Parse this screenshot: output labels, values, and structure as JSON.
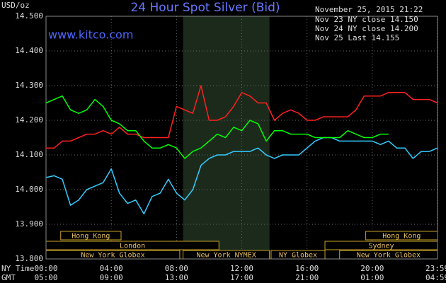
{
  "chart_data": {
    "type": "line",
    "title": "24 Hour Spot Silver (Bid)",
    "website": "www.kitco.com",
    "y_label": "USD/oz",
    "timestamp": "November 25, 2015 21:22",
    "x_row_label": "NY Time",
    "x2_row_label": "GMT",
    "xlim": [
      0,
      24
    ],
    "xticks": [
      {
        "value": 0,
        "label": "00:00"
      },
      {
        "value": 4,
        "label": "04:00"
      },
      {
        "value": 8,
        "label": "08:00"
      },
      {
        "value": 12,
        "label": "12:00"
      },
      {
        "value": 16,
        "label": "16:00"
      },
      {
        "value": 20,
        "label": "20:00"
      },
      {
        "value": 23.98,
        "label": "23:59"
      }
    ],
    "x2tick_labels": [
      "05:00",
      "09:00",
      "13:00",
      "17:00",
      "21:00",
      "01:00",
      "04:59"
    ],
    "ylim": [
      13.8,
      14.5
    ],
    "yticks": [
      {
        "value": 13.8,
        "label": "13.800"
      },
      {
        "value": 13.9,
        "label": "13.900"
      },
      {
        "value": 14.0,
        "label": "14.000"
      },
      {
        "value": 14.1,
        "label": "14.100"
      },
      {
        "value": 14.2,
        "label": "14.200"
      },
      {
        "value": 14.3,
        "label": "14.300"
      },
      {
        "value": 14.4,
        "label": "14.400"
      },
      {
        "value": 14.5,
        "label": "14.500"
      }
    ],
    "grid": true,
    "highlight": [
      8.4,
      13.7
    ],
    "sessions": [
      [
        {
          "label": "Hong Kong",
          "start": 0.9,
          "end": 4.6
        },
        {
          "label": "Hong Kong",
          "start": 19.6,
          "end": 24
        }
      ],
      [
        {
          "label": "London",
          "start": 0,
          "end": 10.6
        },
        {
          "label": "Sydney",
          "start": 17.1,
          "end": 24
        }
      ],
      [
        {
          "label": "New York Globex",
          "start": 0,
          "end": 8.2
        },
        {
          "label": "New York NYMEX",
          "start": 8.4,
          "end": 13.7
        },
        {
          "label": "NY Globex",
          "start": 13.8,
          "end": 17.1
        },
        {
          "label": "New York Globex",
          "start": 18,
          "end": 24
        }
      ]
    ],
    "x": [
      0,
      0.5,
      1,
      1.5,
      2,
      2.5,
      3,
      3.5,
      4,
      4.5,
      5,
      5.5,
      6,
      6.5,
      7,
      7.5,
      8,
      8.5,
      9,
      9.5,
      10,
      10.5,
      11,
      11.5,
      12,
      12.5,
      13,
      13.5,
      14,
      14.5,
      15,
      15.5,
      16,
      16.5,
      17,
      17.5,
      18,
      18.5,
      19,
      19.5,
      20,
      20.5,
      21,
      21.5,
      22,
      22.5,
      23,
      23.5,
      24
    ],
    "series": [
      {
        "name": "Nov 23 NY close 14.150",
        "color": "#33ccff",
        "values": [
          14.035,
          14.04,
          14.03,
          13.955,
          13.97,
          14.0,
          14.01,
          14.02,
          14.06,
          13.99,
          13.96,
          13.97,
          13.93,
          13.98,
          13.99,
          14.03,
          13.99,
          13.97,
          14.0,
          14.07,
          14.09,
          14.1,
          14.1,
          14.11,
          14.11,
          14.11,
          14.12,
          14.1,
          14.09,
          14.1,
          14.1,
          14.1,
          14.12,
          14.14,
          14.15,
          14.15,
          14.14,
          14.14,
          14.14,
          14.14,
          14.14,
          14.13,
          14.14,
          14.12,
          14.12,
          14.09,
          14.11,
          14.11,
          14.12
        ]
      },
      {
        "name": "Nov 24 NY close 14.200",
        "color": "#ff2020",
        "values": [
          14.12,
          14.12,
          14.14,
          14.14,
          14.15,
          14.16,
          14.16,
          14.17,
          14.16,
          14.18,
          14.16,
          14.16,
          14.15,
          14.15,
          14.15,
          14.15,
          14.24,
          14.23,
          14.22,
          14.3,
          14.2,
          14.2,
          14.21,
          14.24,
          14.28,
          14.27,
          14.25,
          14.25,
          14.2,
          14.22,
          14.23,
          14.22,
          14.2,
          14.2,
          14.21,
          14.21,
          14.21,
          14.21,
          14.23,
          14.27,
          14.27,
          14.27,
          14.28,
          14.28,
          14.28,
          14.26,
          14.26,
          14.26,
          14.25
        ]
      },
      {
        "name": "Nov 25 Last 14.155",
        "color": "#00ff00",
        "values": [
          14.25,
          14.26,
          14.27,
          14.23,
          14.22,
          14.23,
          14.26,
          14.24,
          14.2,
          14.19,
          14.17,
          14.17,
          14.14,
          14.12,
          14.12,
          14.13,
          14.12,
          14.09,
          14.11,
          14.12,
          14.14,
          14.16,
          14.15,
          14.18,
          14.17,
          14.2,
          14.19,
          14.14,
          14.17,
          14.17,
          14.16,
          14.16,
          14.16,
          14.15,
          14.15,
          14.15,
          14.15,
          14.17,
          14.16,
          14.15,
          14.15,
          14.16,
          14.16,
          null,
          null,
          null,
          null,
          null,
          null
        ]
      }
    ]
  }
}
